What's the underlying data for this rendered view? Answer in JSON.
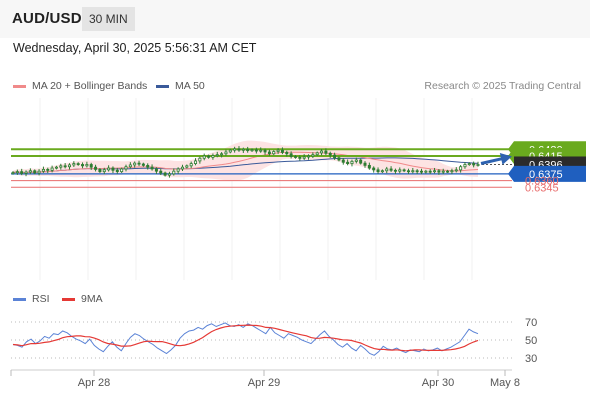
{
  "header": {
    "symbol": "AUD/USD",
    "timeframe": "30 MIN"
  },
  "datetime": "Wednesday, April 30, 2025 5:56:31 AM CET",
  "legend": {
    "ma20_label": "MA 20 + Bollinger Bands",
    "ma50_label": "MA 50",
    "credit": "Research © 2025 Trading Central"
  },
  "rsi_legend": {
    "rsi_label": "RSI",
    "ma_label": "9MA"
  },
  "colors": {
    "green_level": "#6aaa1e",
    "blue_level": "#1f5fbf",
    "red_level": "#e86c6c",
    "ma20": "#f08a8a",
    "ma50": "#3a5a9a",
    "bands": "#fde3e3",
    "candle": "#2e7d32",
    "arrow": "#2d62b0",
    "rsi": "#5b83d6",
    "rsi_ma": "#e53935"
  },
  "chart_data": [
    {
      "type": "candlestick",
      "title": "",
      "x_ticks": [
        "Apr 28",
        "Apr 29",
        "Apr 30",
        "May 8"
      ],
      "ylim": [
        0.6335,
        0.645
      ],
      "price_levels": [
        {
          "value": "0.6430",
          "kind": "resistance",
          "color": "green"
        },
        {
          "value": "0.6415",
          "kind": "resistance",
          "color": "green"
        },
        {
          "value": "0.6396",
          "kind": "current",
          "color": "dark"
        },
        {
          "value": "0.6375",
          "kind": "support",
          "color": "blue"
        },
        {
          "value": "0.6360",
          "kind": "support",
          "color": "red"
        },
        {
          "value": "0.6345",
          "kind": "support",
          "color": "red"
        }
      ],
      "closes": [
        0.6378,
        0.638,
        0.6376,
        0.6379,
        0.6382,
        0.6377,
        0.6381,
        0.6385,
        0.6383,
        0.6388,
        0.639,
        0.6393,
        0.6391,
        0.6395,
        0.6398,
        0.6396,
        0.6393,
        0.6396,
        0.639,
        0.6385,
        0.638,
        0.6384,
        0.6388,
        0.6383,
        0.638,
        0.6386,
        0.6391,
        0.6395,
        0.6399,
        0.6397,
        0.6394,
        0.639,
        0.6386,
        0.6381,
        0.6377,
        0.6372,
        0.6375,
        0.6381,
        0.6386,
        0.639,
        0.6393,
        0.6398,
        0.6404,
        0.641,
        0.6415,
        0.6412,
        0.6416,
        0.6418,
        0.642,
        0.6424,
        0.6428,
        0.6431,
        0.6428,
        0.643,
        0.6427,
        0.6429,
        0.6426,
        0.6428,
        0.6424,
        0.642,
        0.6425,
        0.6428,
        0.6423,
        0.642,
        0.6414,
        0.6412,
        0.641,
        0.6413,
        0.6415,
        0.6418,
        0.6422,
        0.6426,
        0.6421,
        0.6417,
        0.6411,
        0.6406,
        0.6401,
        0.6398,
        0.6403,
        0.6406,
        0.6399,
        0.6394,
        0.6388,
        0.6384,
        0.638,
        0.6382,
        0.6386,
        0.6383,
        0.6381,
        0.6384,
        0.6382,
        0.638,
        0.6382,
        0.6381,
        0.6379,
        0.6381,
        0.638,
        0.6382,
        0.6379,
        0.6381,
        0.638,
        0.6382,
        0.6384,
        0.6391,
        0.6396,
        0.6398,
        0.6395,
        0.6396
      ]
    },
    {
      "type": "line",
      "title": "",
      "series_names": [
        "RSI",
        "9MA"
      ],
      "ylim": [
        20,
        80
      ],
      "y_ticks": [
        "70",
        "50",
        "30"
      ],
      "rsi_values": [
        45,
        44,
        42,
        48,
        51,
        46,
        49,
        54,
        52,
        57,
        56,
        60,
        58,
        54,
        51,
        49,
        46,
        51,
        44,
        40,
        37,
        43,
        48,
        42,
        38,
        46,
        53,
        57,
        55,
        51,
        48,
        45,
        41,
        38,
        35,
        39,
        44,
        52,
        57,
        60,
        61,
        64,
        62,
        66,
        68,
        65,
        67,
        69,
        66,
        65,
        67,
        64,
        68,
        66,
        63,
        60,
        57,
        64,
        58,
        55,
        52,
        57,
        55,
        53,
        50,
        48,
        46,
        51,
        56,
        60,
        54,
        50,
        45,
        42,
        46,
        41,
        38,
        44,
        40,
        35,
        33,
        37,
        43,
        40,
        39,
        41,
        38,
        36,
        39,
        38,
        37,
        40,
        38,
        39,
        41,
        38,
        40,
        42,
        45,
        48,
        55,
        62,
        59,
        57
      ]
    }
  ]
}
